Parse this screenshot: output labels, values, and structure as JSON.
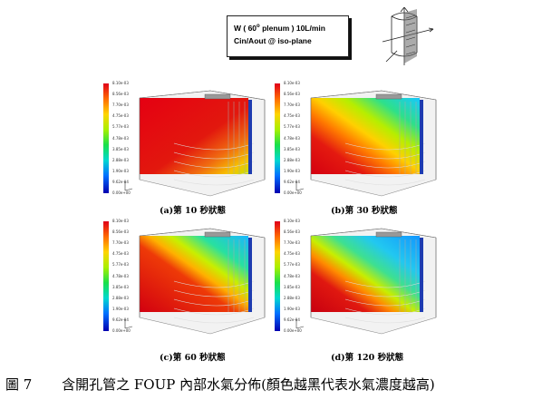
{
  "header": {
    "line1_prefix": "W ( 60",
    "line1_sup": "o",
    "line1_suffix": " plenum ) 10L/min",
    "line2": "Cin/Aout @ iso-plane"
  },
  "scale_ticks": [
    "8.10e-03",
    "8.56e-03",
    "7.70e-03",
    "4.75e-03",
    "5.77e-03",
    "4.78e-03",
    "3.85e-03",
    "2.88e-03",
    "1.90e-03",
    "9.62e-04",
    "0.00e+00"
  ],
  "panels": [
    {
      "label": "(a)第 10  秒狀態",
      "time_s": 10
    },
    {
      "label": "(b)第 30  秒狀態",
      "time_s": 30
    },
    {
      "label": "(c)第 60  秒狀態",
      "time_s": 60
    },
    {
      "label": "(d)第 120  秒狀態",
      "time_s": 120
    }
  ],
  "figure": {
    "number": "圖 7",
    "caption": "含開孔管之 FOUP 內部水氣分佈(顏色越黑代表水氣濃度越高)"
  }
}
